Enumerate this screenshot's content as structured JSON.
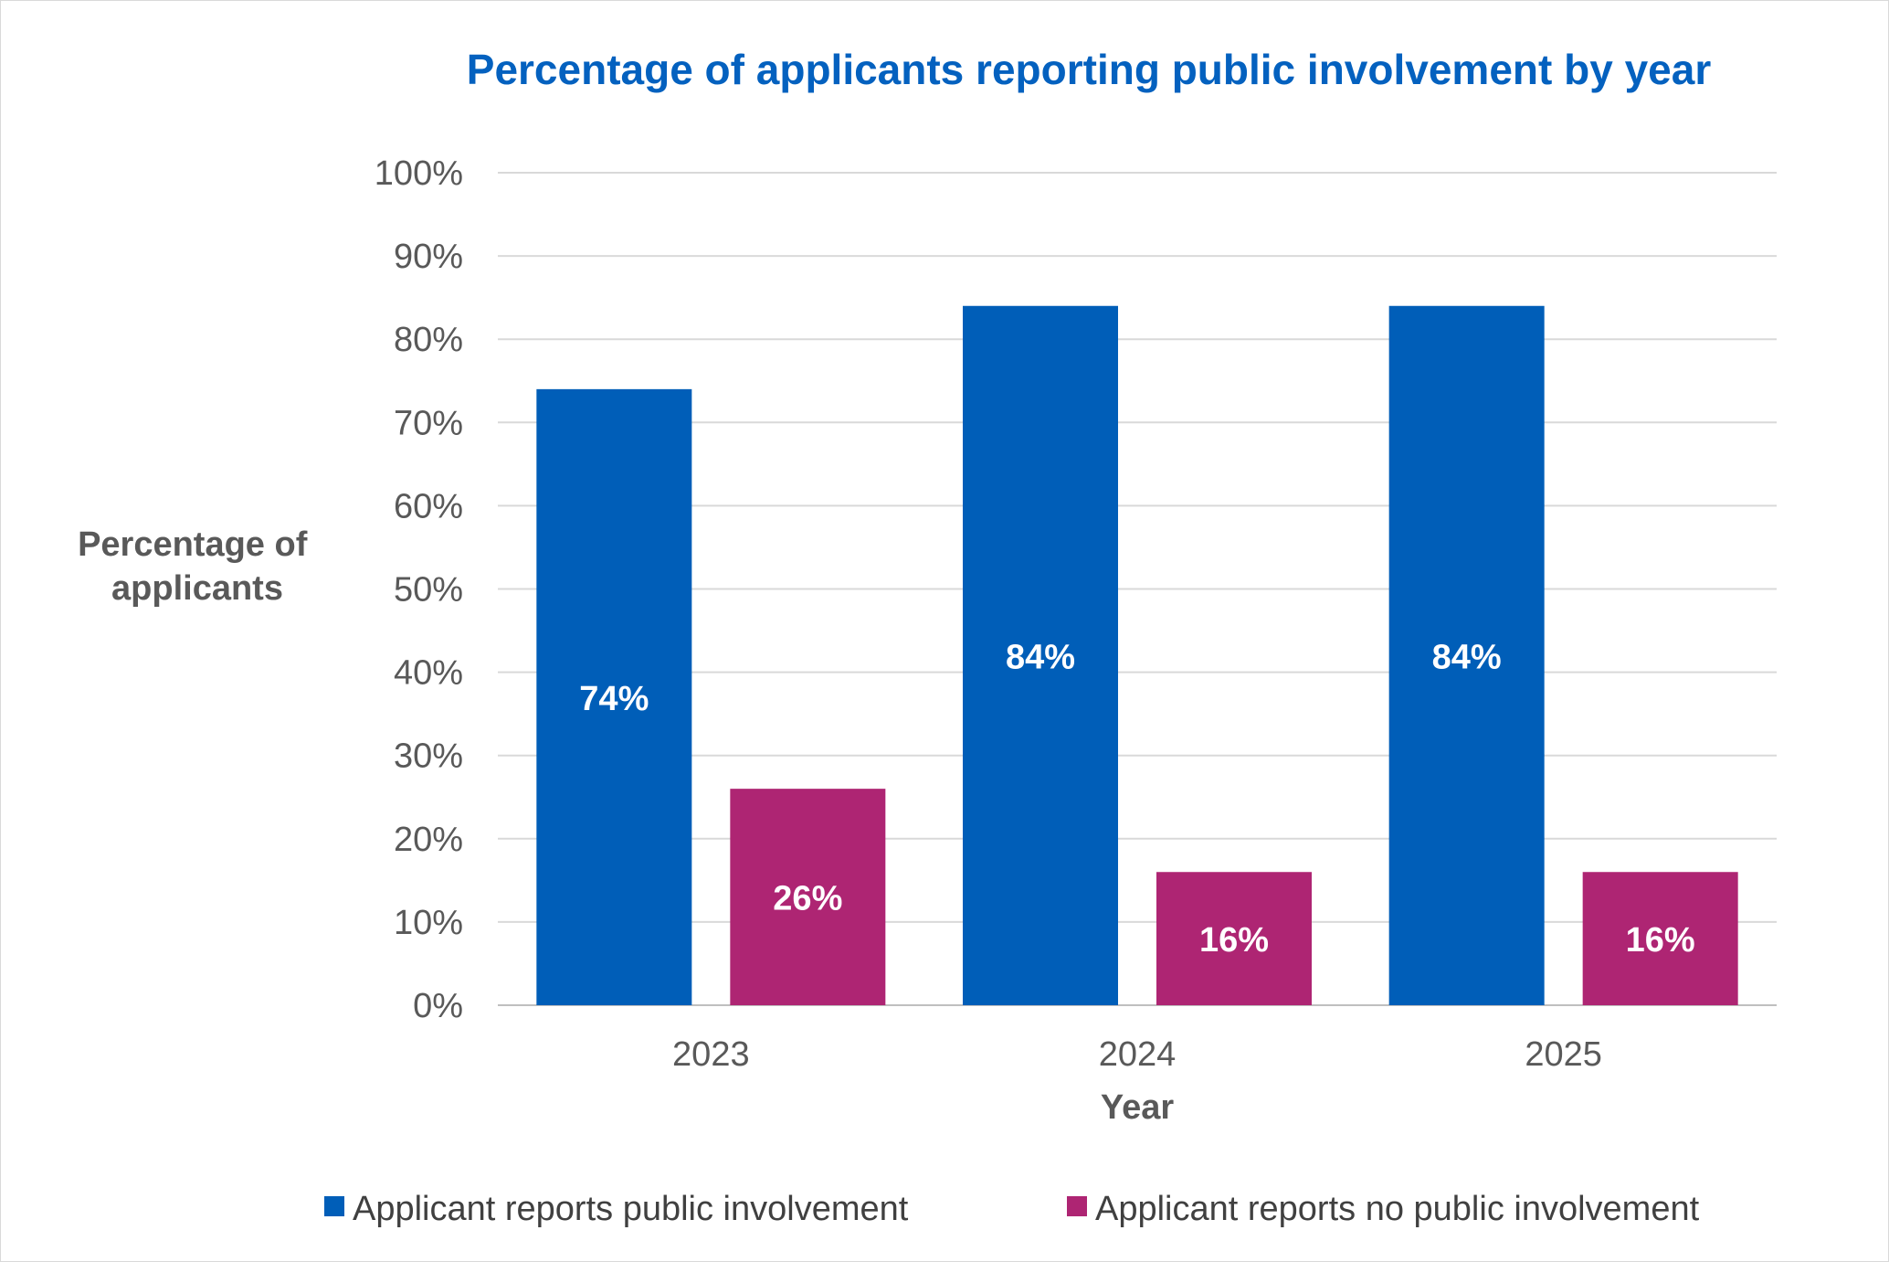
{
  "chart_data": {
    "type": "bar",
    "title": "Percentage of applicants reporting public involvement by year",
    "xlabel": "Year",
    "ylabel": "Percentage of applicants",
    "categories": [
      "2023",
      "2024",
      "2025"
    ],
    "series": [
      {
        "name": "Applicant reports public involvement",
        "values": [
          74,
          84,
          84
        ],
        "labels": [
          "74%",
          "84%",
          "84%"
        ],
        "color": "#005eb8"
      },
      {
        "name": "Applicant reports no public involvement",
        "values": [
          26,
          16,
          16
        ],
        "labels": [
          "26%",
          "16%",
          "16%"
        ],
        "color": "#ae2573"
      }
    ],
    "ylim": [
      0,
      100
    ],
    "yticks": [
      0,
      10,
      20,
      30,
      40,
      50,
      60,
      70,
      80,
      90,
      100
    ],
    "ytick_labels": [
      "0%",
      "10%",
      "20%",
      "30%",
      "40%",
      "50%",
      "60%",
      "70%",
      "80%",
      "90%",
      "100%"
    ],
    "grid": true,
    "legend_position": "bottom"
  },
  "colors": {
    "title": "#0461bf",
    "axis_text": "#595959",
    "legend_text": "#404040",
    "gridline": "#d9d9d9"
  }
}
